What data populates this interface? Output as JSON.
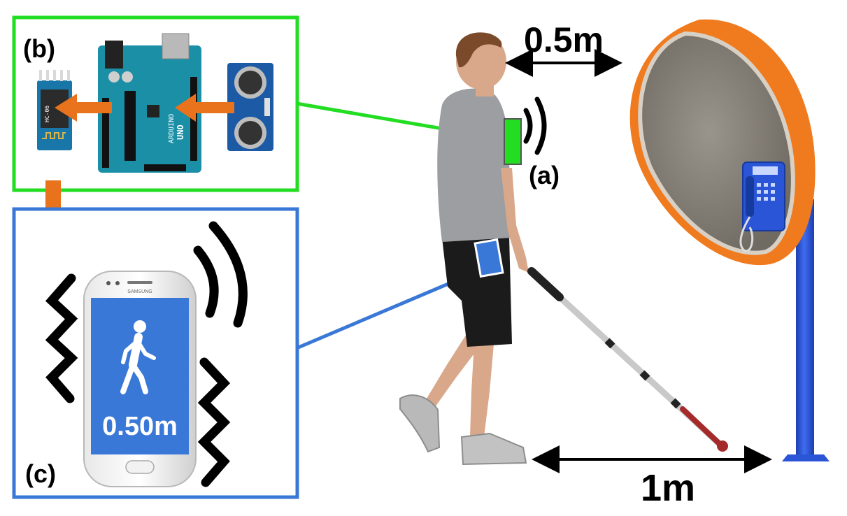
{
  "labels": {
    "a": "(a)",
    "b": "(b)",
    "c": "(c)"
  },
  "measurements": {
    "head_distance": "0.5m",
    "ground_distance": "1m"
  },
  "phone": {
    "screen_distance": "0.50m",
    "brand": "SAMSUNG",
    "walk_icon": "pedestrian-icon"
  },
  "arduino": {
    "board_text": "ARDUINO",
    "model_text": "UNO"
  },
  "bluetooth_module": {
    "text": "HC-06"
  },
  "colors": {
    "sensor_box_border": "#22dd22",
    "phone_box_border": "#3a78d8",
    "arrow_orange": "#e8731c",
    "booth_orange": "#f07a1e",
    "booth_pole_blue": "#2a55d6",
    "arduino_teal": "#1a8fa6",
    "screen_blue": "#3a78d8"
  }
}
